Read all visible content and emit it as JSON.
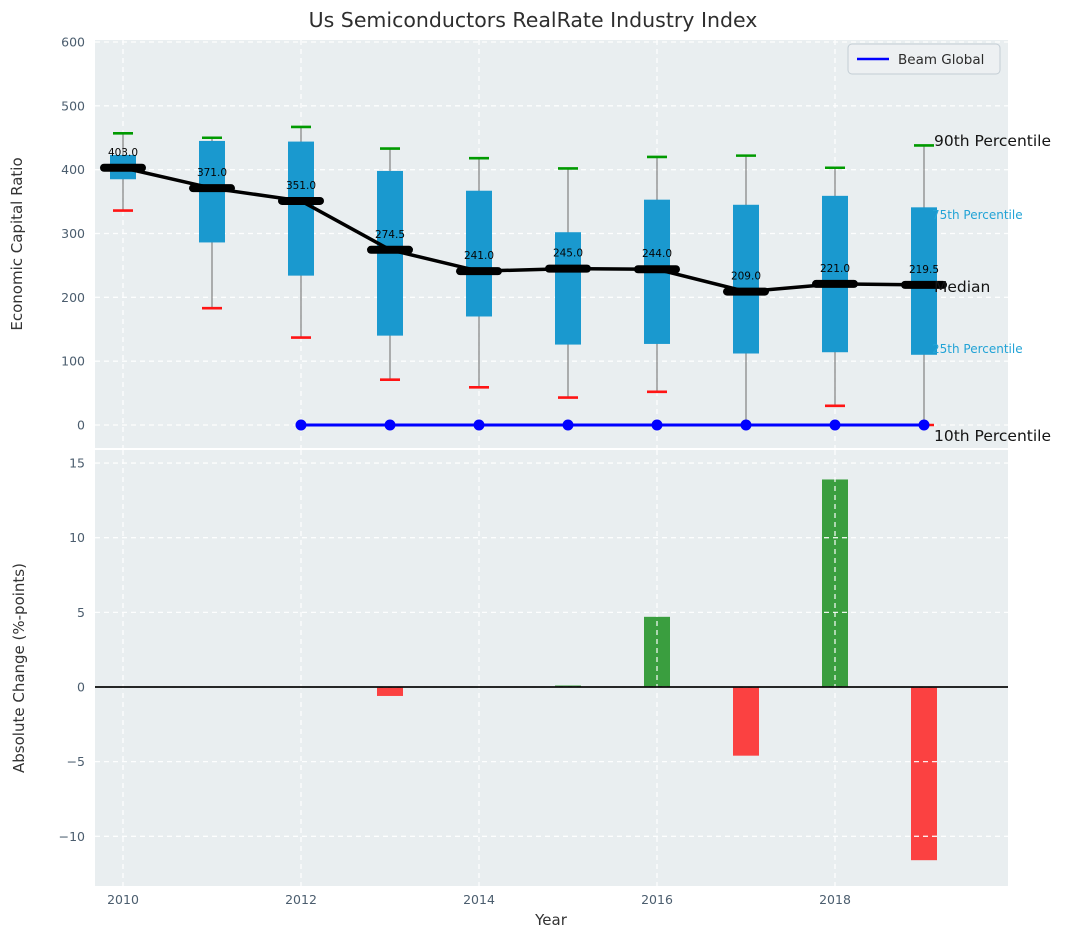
{
  "title": "Us Semiconductors RealRate Industry Index",
  "legend": {
    "label": "Beam Global",
    "line_color": "#0000ff"
  },
  "annotations": {
    "p90": "90th Percentile",
    "p75": "75th Percentile",
    "median": "Median",
    "p25": "25th Percentile",
    "p10": "10th Percentile"
  },
  "colors": {
    "box": "#1a99cf",
    "cap_high": "#009a00",
    "cap_low": "#ff1414",
    "median_line": "#000000",
    "beam_line": "#0000ff",
    "bar_pos": "#3a9e3f",
    "bar_neg": "#fb4141",
    "panel_bg": "#e9eef0",
    "grid": "#ffffff",
    "whisker": "#808080",
    "tick": "#4b5d6e",
    "annotation_percentile": "#22a3d6",
    "zero_line": "#0a0a0a"
  },
  "chart_data": [
    {
      "type": "boxplot_with_median_line",
      "title": "Us Semiconductors RealRate Industry Index",
      "ylabel": "Economic Capital Ratio",
      "years": [
        2010,
        2011,
        2012,
        2013,
        2014,
        2015,
        2016,
        2017,
        2018,
        2019
      ],
      "median": [
        403.0,
        371.0,
        351.0,
        274.5,
        241.0,
        245.0,
        244.0,
        209.0,
        221.0,
        219.5
      ],
      "p75": [
        423,
        445,
        444,
        398,
        367,
        302,
        353,
        345,
        359,
        341
      ],
      "p25": [
        385,
        286,
        234,
        140,
        170,
        126,
        127,
        112,
        114,
        110
      ],
      "p90": [
        457,
        450,
        467,
        433,
        418,
        402,
        420,
        422,
        403,
        438
      ],
      "p10": [
        336,
        183,
        137,
        71,
        59,
        43,
        52,
        0,
        30,
        0
      ],
      "p10_cap_visible": [
        true,
        true,
        true,
        true,
        true,
        true,
        true,
        false,
        true,
        true
      ],
      "beam_global": {
        "name": "Beam Global",
        "years": [
          2012,
          2013,
          2014,
          2015,
          2016,
          2017,
          2018,
          2019
        ],
        "values": [
          0,
          0,
          0,
          0,
          0,
          0,
          0,
          0
        ]
      },
      "yticks": [
        0,
        100,
        200,
        300,
        400,
        500,
        600
      ],
      "xticks": [
        2010,
        2012,
        2014,
        2016,
        2018
      ],
      "ylim": [
        -33,
        607
      ],
      "grid": true,
      "legend_position": "upper right"
    },
    {
      "type": "bar",
      "ylabel": "Absolute Change (%-points)",
      "xlabel": "Year",
      "years": [
        2010,
        2011,
        2012,
        2013,
        2014,
        2015,
        2016,
        2017,
        2018,
        2019
      ],
      "values": [
        0,
        0,
        0,
        -0.6,
        0,
        0.1,
        4.7,
        -4.6,
        13.9,
        -11.6
      ],
      "yticks": [
        15,
        10,
        5,
        0,
        -5,
        -10
      ],
      "xticks": [
        2010,
        2012,
        2014,
        2016,
        2018
      ],
      "ylim": [
        -13.3,
        15.9
      ],
      "grid": true
    }
  ]
}
